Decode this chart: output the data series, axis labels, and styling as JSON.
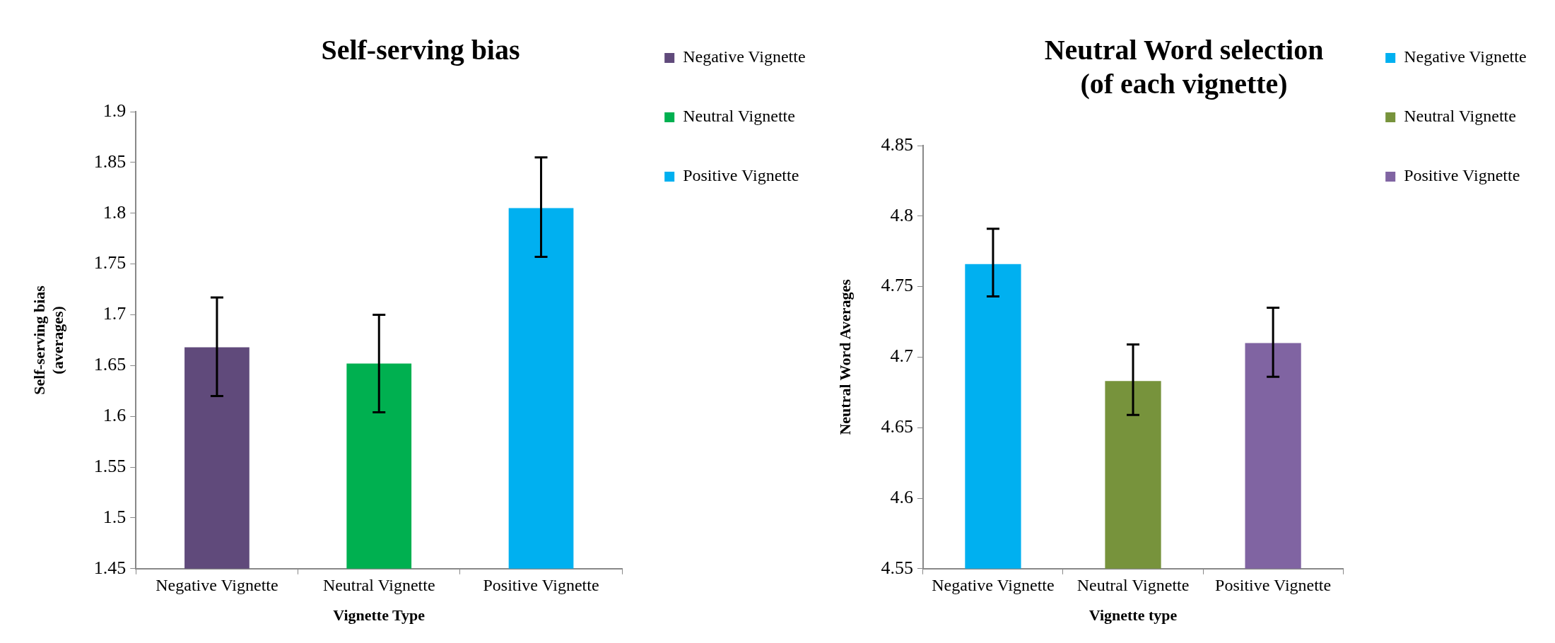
{
  "chart_data": [
    {
      "type": "bar",
      "title": "Self-serving bias",
      "xlabel": "Vignette Type",
      "ylabel": "Self-serving bias\n(averages)",
      "categories": [
        "Negative Vignette",
        "Neutral Vignette",
        "Positive Vignette"
      ],
      "series": [
        {
          "name": "Negative Vignette",
          "color": "#604a7b",
          "values": [
            1.668,
            null,
            null
          ],
          "errors": [
            [
              1.62,
              1.717
            ],
            null,
            null
          ]
        },
        {
          "name": "Neutral Vignette",
          "color": "#00b050",
          "values": [
            null,
            1.652,
            null
          ],
          "errors": [
            null,
            [
              1.604,
              1.7
            ],
            null
          ]
        },
        {
          "name": "Positive Vignette",
          "color": "#00b0f0",
          "values": [
            null,
            null,
            1.805
          ],
          "errors": [
            null,
            null,
            [
              1.757,
              1.855
            ]
          ]
        }
      ],
      "ylim": [
        1.45,
        1.9
      ],
      "yticks": [
        1.45,
        1.5,
        1.55,
        1.6,
        1.65,
        1.7,
        1.75,
        1.8,
        1.85,
        1.9
      ],
      "grid": false,
      "legend": "top right"
    },
    {
      "type": "bar",
      "title": "Neutral Word selection\n(of each vignette)",
      "xlabel": "Vignette type",
      "ylabel": "Neutral Word Averages",
      "categories": [
        "Negative Vignette",
        "Neutral Vignette",
        "Positive Vignette"
      ],
      "series": [
        {
          "name": "Negative Vignette",
          "color": "#00b0f0",
          "values": [
            4.766,
            null,
            null
          ],
          "errors": [
            [
              4.743,
              4.791
            ],
            null,
            null
          ]
        },
        {
          "name": "Neutral Vignette",
          "color": "#77933c",
          "values": [
            null,
            4.683,
            null
          ],
          "errors": [
            null,
            [
              4.659,
              4.709
            ],
            null
          ]
        },
        {
          "name": "Positive Vignette",
          "color": "#8064a2",
          "values": [
            null,
            null,
            4.71
          ],
          "errors": [
            null,
            null,
            [
              4.686,
              4.735
            ]
          ]
        }
      ],
      "ylim": [
        4.55,
        4.85
      ],
      "yticks": [
        4.55,
        4.6,
        4.65,
        4.7,
        4.75,
        4.8,
        4.85
      ],
      "grid": false,
      "legend": "top right"
    }
  ]
}
